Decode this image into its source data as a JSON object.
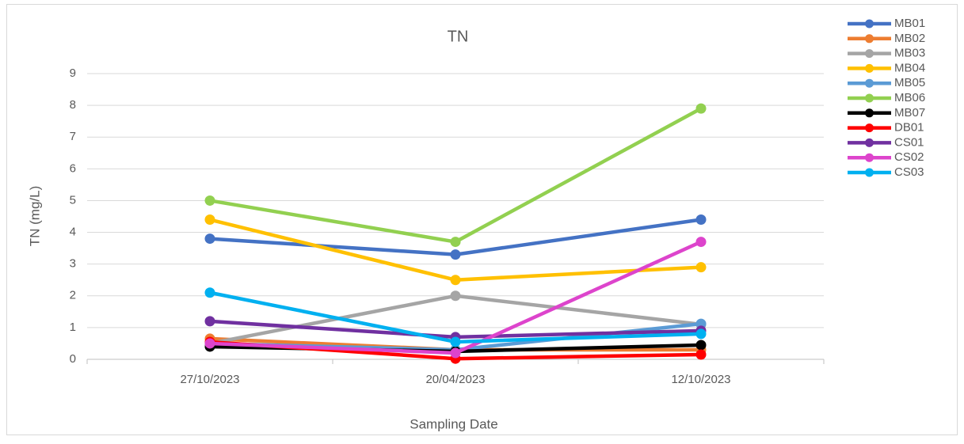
{
  "chart_data": {
    "type": "line",
    "title": "TN",
    "x_label": "Sampling Date",
    "y_label": "TN (mg/L)",
    "categories": [
      "27/10/2023",
      "20/04/2023",
      "12/10/2023"
    ],
    "ylim": [
      0,
      9
    ],
    "yticks": [
      0,
      1,
      2,
      3,
      4,
      5,
      6,
      7,
      8,
      9
    ],
    "grid": true,
    "legend": "right",
    "series": [
      {
        "name": "MB01",
        "color": "#4472c4",
        "values": [
          3.8,
          3.3,
          4.4
        ]
      },
      {
        "name": "MB02",
        "color": "#ed7d31",
        "values": [
          0.65,
          0.3,
          0.3
        ]
      },
      {
        "name": "MB03",
        "color": "#a5a5a5",
        "values": [
          0.5,
          2.0,
          1.1
        ]
      },
      {
        "name": "MB04",
        "color": "#ffc000",
        "values": [
          4.4,
          2.5,
          2.9
        ]
      },
      {
        "name": "MB05",
        "color": "#5b9bd5",
        "values": [
          0.5,
          0.3,
          1.12
        ]
      },
      {
        "name": "MB06",
        "color": "#92d050",
        "values": [
          5.0,
          3.7,
          7.9
        ]
      },
      {
        "name": "MB07",
        "color": "#000000",
        "values": [
          0.4,
          0.25,
          0.45
        ]
      },
      {
        "name": "DB01",
        "color": "#ff0000",
        "values": [
          0.55,
          0.02,
          0.15
        ]
      },
      {
        "name": "CS01",
        "color": "#7030a0",
        "values": [
          1.2,
          0.7,
          0.9
        ]
      },
      {
        "name": "CS02",
        "color": "#dd44cc",
        "values": [
          0.5,
          0.2,
          3.7
        ]
      },
      {
        "name": "CS03",
        "color": "#00b0f0",
        "values": [
          2.1,
          0.55,
          0.8
        ]
      }
    ]
  }
}
